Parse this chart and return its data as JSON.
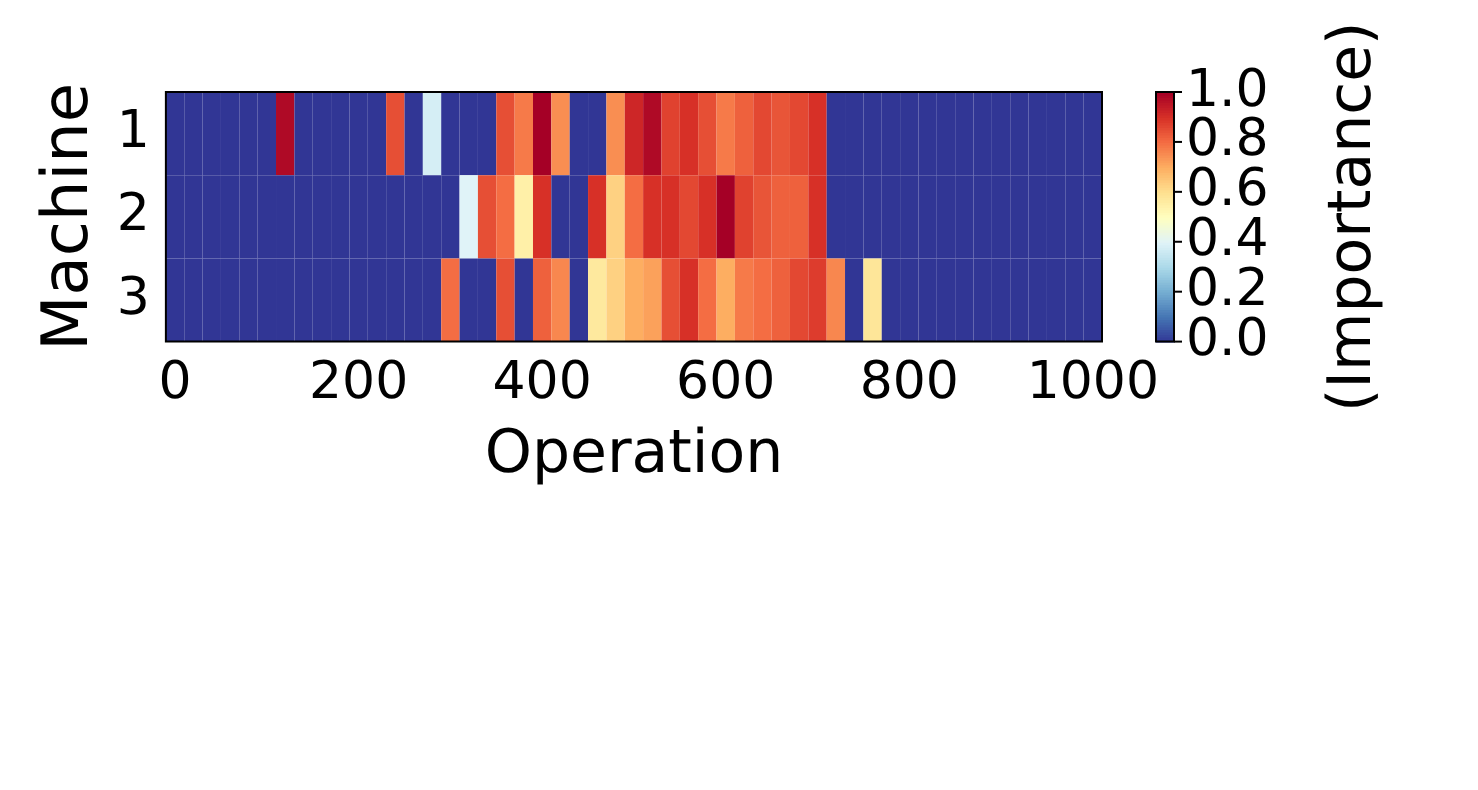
{
  "chart_data": {
    "type": "heatmap",
    "xlabel": "Operation",
    "ylabel": "Machine",
    "clabel": "(Importance)",
    "x": [
      0,
      20,
      40,
      60,
      80,
      100,
      120,
      140,
      160,
      180,
      200,
      220,
      240,
      260,
      280,
      300,
      320,
      340,
      360,
      380,
      400,
      420,
      440,
      460,
      480,
      500,
      520,
      540,
      560,
      580,
      600,
      620,
      640,
      660,
      680,
      700,
      720,
      740,
      760,
      780,
      800,
      820,
      840,
      860,
      880,
      900,
      920,
      940,
      960,
      980,
      1000
    ],
    "xlim": [
      -10,
      1010
    ],
    "xticks": [
      0,
      200,
      400,
      600,
      800,
      1000
    ],
    "y_categories": [
      "1",
      "2",
      "3"
    ],
    "cells": [
      [
        0,
        0,
        0,
        0,
        0,
        0,
        0.98,
        0,
        0,
        0,
        0,
        0,
        0.85,
        0,
        0.38,
        0,
        0,
        0,
        0.85,
        0.78,
        1.0,
        0.75,
        0,
        0,
        0.75,
        0.92,
        0.98,
        0.87,
        0.9,
        0.85,
        0.78,
        0.82,
        0.86,
        0.84,
        0.86,
        0.9,
        0,
        0,
        0,
        0,
        0,
        0,
        0,
        0,
        0,
        0,
        0,
        0,
        0,
        0,
        0
      ],
      [
        0,
        0,
        0,
        0,
        0,
        0,
        0,
        0,
        0,
        0,
        0,
        0,
        0,
        0,
        0,
        0,
        0.4,
        0.85,
        0.8,
        0.55,
        0.9,
        0,
        0,
        0.9,
        0.63,
        0.8,
        0.9,
        0.9,
        0.86,
        0.9,
        1.0,
        0.87,
        0.84,
        0.82,
        0.82,
        0.9,
        0,
        0,
        0,
        0,
        0,
        0,
        0,
        0,
        0,
        0,
        0,
        0,
        0,
        0,
        0
      ],
      [
        0,
        0,
        0,
        0,
        0,
        0,
        0,
        0,
        0,
        0,
        0,
        0,
        0,
        0,
        0,
        0.8,
        0,
        0,
        0.85,
        0,
        0.82,
        0.76,
        0,
        0.57,
        0.63,
        0.7,
        0.72,
        0.85,
        0.9,
        0.8,
        0.7,
        0.78,
        0.8,
        0.82,
        0.86,
        0.88,
        0.76,
        0,
        0.58,
        0,
        0,
        0,
        0,
        0,
        0,
        0,
        0,
        0,
        0,
        0,
        0
      ]
    ],
    "clim": [
      0,
      1
    ],
    "cticks": [
      {
        "value": 0,
        "label": "0.0"
      },
      {
        "value": 0.2,
        "label": "0.2"
      },
      {
        "value": 0.4,
        "label": "0.4"
      },
      {
        "value": 0.6,
        "label": "0.6"
      },
      {
        "value": 0.8,
        "label": "0.8"
      },
      {
        "value": 1,
        "label": "1.0"
      }
    ]
  }
}
